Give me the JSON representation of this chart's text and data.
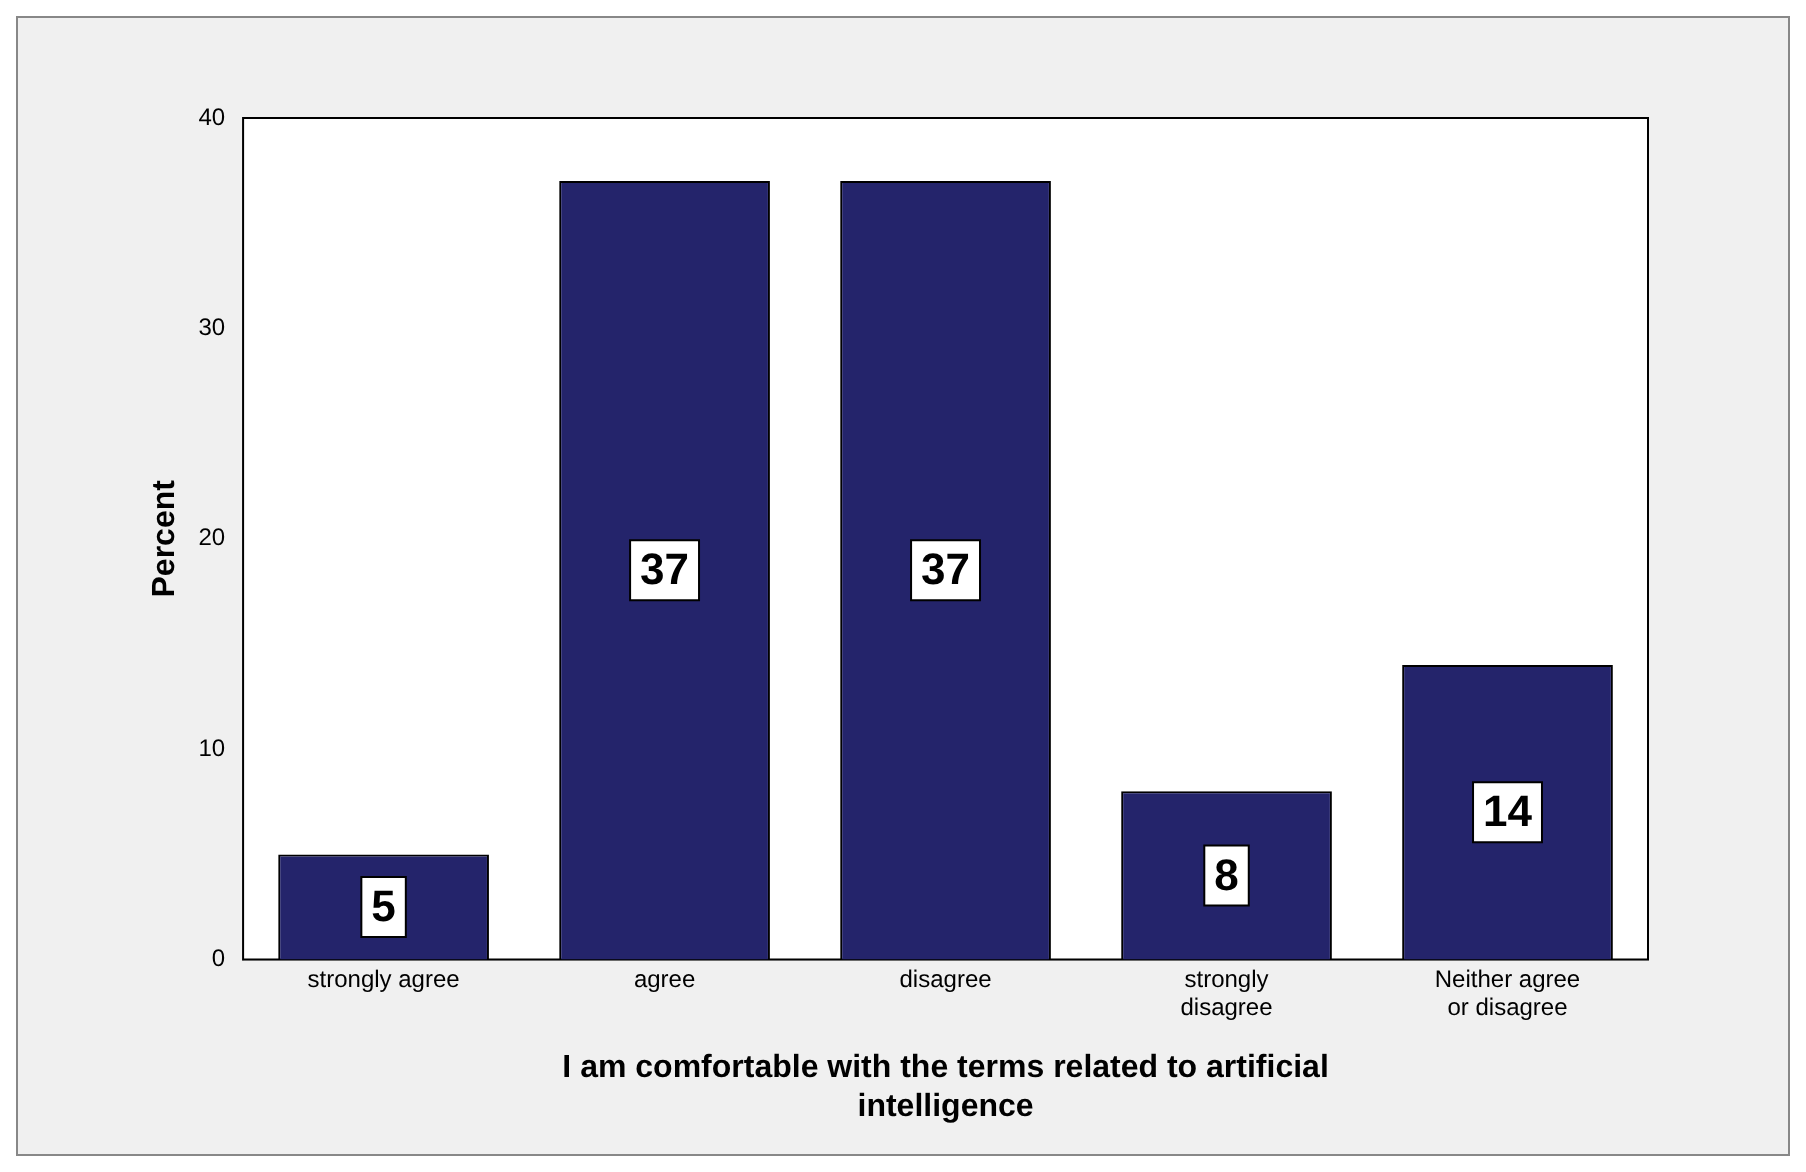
{
  "chart_data": {
    "type": "bar",
    "xlabel": "I am comfortable with the terms related to artificial intelligence",
    "ylabel": "Percent",
    "categories": [
      "strongly agree",
      "agree",
      "disagree",
      "strongly disagree",
      "Neither agree or disagree"
    ],
    "values": [
      5,
      37,
      37,
      8,
      14
    ],
    "color": "#24246b",
    "ylim": [
      0,
      40
    ],
    "yticks": [
      0,
      10,
      20,
      30,
      40
    ],
    "grid": false,
    "legend": false,
    "data_labels": true
  }
}
